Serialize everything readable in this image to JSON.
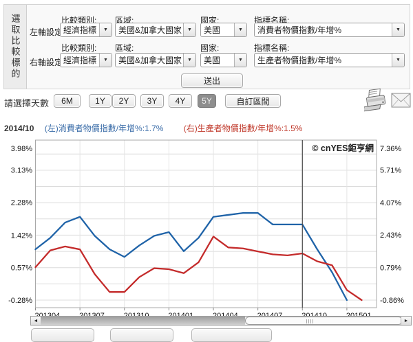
{
  "panel": {
    "side_label": "選取比較標的",
    "left_axis_label": "左軸設定:",
    "right_axis_label": "右軸設定:",
    "category_label": "比較類別:",
    "region_label": "區域:",
    "country_label": "國家:",
    "indicator_label": "指標名稱:",
    "submit_label": "送出",
    "left_row": {
      "category": "經濟指標",
      "region": "美國&加拿大國家",
      "country": "美國",
      "indicator": "消費者物價指數/年增%"
    },
    "right_row": {
      "category": "經濟指標",
      "region": "美國&加拿大國家",
      "country": "美國",
      "indicator": "生產者物價指數/年增%"
    },
    "dropdown_arrow": "▼"
  },
  "toolbar": {
    "days_label": "請選擇天數",
    "ranges": [
      "6M",
      "1Y",
      "2Y",
      "3Y",
      "4Y",
      "5Y",
      "自訂區間"
    ],
    "selected": "5Y",
    "printer_icon": "printer-icon",
    "mail_icon": "mail-icon"
  },
  "legend": {
    "date": "2014/10",
    "left_text": "(左)消費者物價指數/年增%:1.7%",
    "right_text": "(右)生產者物價指數/年增%:1.5%"
  },
  "scrollbar": {
    "left_arrow": "◄",
    "right_arrow": "►"
  },
  "colors": {
    "left_series": "#1f63a8",
    "right_series": "#c42b2b",
    "left_legend_text": "#3a6ca8",
    "right_legend_text": "#c0392b",
    "grid": "#dcdcdc",
    "vgrid": "#e4e4e4",
    "plot_border": "#a8a8a8",
    "crosshair": "#4a4a4a",
    "axis_text": "#111111"
  },
  "chart_data": {
    "type": "line",
    "watermark": "© cnYES鉅亨網",
    "x_months": [
      "2013/04",
      "2013/05",
      "2013/06",
      "2013/07",
      "2013/08",
      "2013/09",
      "2013/10",
      "2013/11",
      "2013/12",
      "2014/01",
      "2014/02",
      "2014/03",
      "2014/04",
      "2014/05",
      "2014/06",
      "2014/07",
      "2014/08",
      "2014/09",
      "2014/10",
      "2014/11",
      "2014/12",
      "2015/01",
      "2015/02"
    ],
    "x_tick_labels": [
      "201304",
      "201307",
      "201310",
      "201401",
      "201404",
      "201407",
      "201410",
      "201501"
    ],
    "x_tick_indices": [
      0,
      3,
      6,
      9,
      12,
      15,
      18,
      21
    ],
    "crosshair_month": "2014/10",
    "left_axis": {
      "min": -0.28,
      "max": 3.98,
      "labels": [
        "3.98%",
        "3.13%",
        "2.28%",
        "1.42%",
        "0.57%",
        "-0.28%"
      ],
      "label_values": [
        3.98,
        3.13,
        2.28,
        1.42,
        0.57,
        -0.28
      ],
      "grid_step": 0.425
    },
    "right_axis": {
      "min": -0.86,
      "max": 7.36,
      "labels": [
        "7.36%",
        "5.71%",
        "4.07%",
        "2.43%",
        "0.79%",
        "-0.86%"
      ],
      "label_values": [
        7.36,
        5.71,
        4.07,
        2.43,
        0.79,
        -0.86
      ]
    },
    "series": [
      {
        "name": "消費者物價指數/年增%",
        "axis": "left",
        "values": [
          1.05,
          1.35,
          1.75,
          1.9,
          1.4,
          1.05,
          0.85,
          1.15,
          1.4,
          1.5,
          1.0,
          1.35,
          1.9,
          1.95,
          2.0,
          2.0,
          1.7,
          1.7,
          1.7,
          1.05,
          0.45,
          -0.28,
          null
        ]
      },
      {
        "name": "生產者物價指數/年增%",
        "axis": "right",
        "values": [
          0.8,
          1.65,
          1.85,
          1.7,
          0.45,
          -0.45,
          -0.45,
          0.3,
          0.75,
          0.7,
          0.5,
          1.05,
          2.35,
          1.8,
          1.75,
          1.6,
          1.45,
          1.4,
          1.5,
          1.1,
          0.9,
          -0.35,
          -0.86
        ]
      }
    ]
  }
}
